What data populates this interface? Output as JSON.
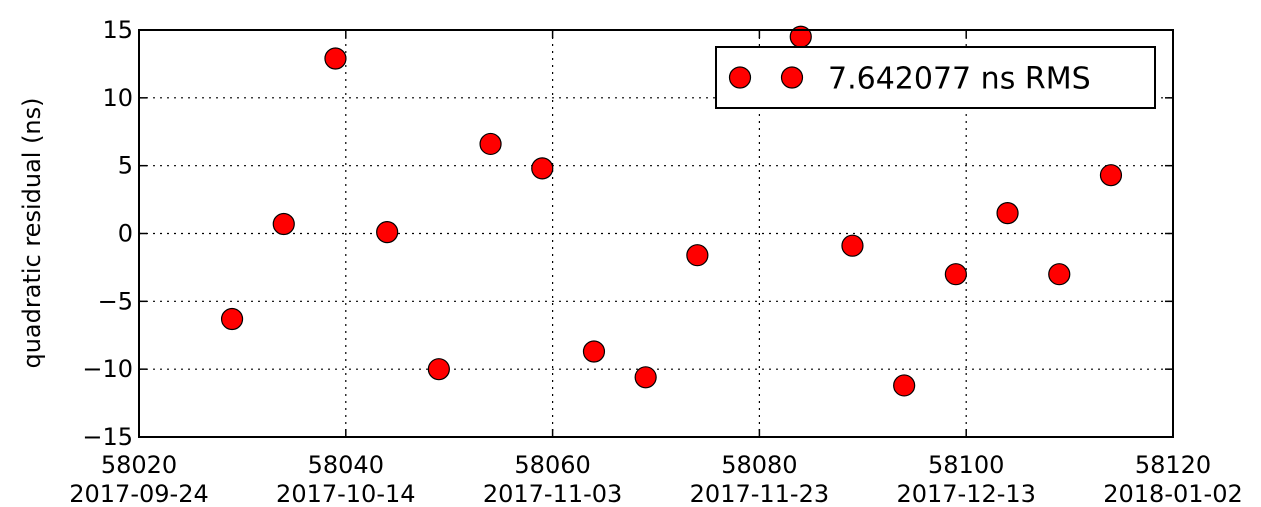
{
  "chart_data": {
    "type": "scatter",
    "title": "",
    "xlabel": "",
    "ylabel": "quadratic residual (ns)",
    "xlim": [
      58020,
      58120
    ],
    "ylim": [
      -15,
      15
    ],
    "xticks": [
      "58020",
      "58040",
      "58060",
      "58080",
      "58100",
      "58120"
    ],
    "xticks_secondary": [
      "2017-09-24",
      "2017-10-14",
      "2017-11-03",
      "2017-11-23",
      "2017-12-13",
      "2018-01-02"
    ],
    "yticks": [
      "15",
      "10",
      "5",
      "0",
      "−5",
      "−10",
      "−15"
    ],
    "grid": true,
    "legend_placement": "upper-right",
    "series": [
      {
        "name": "7.642077 ns RMS",
        "color": "#ff0000",
        "marker": "circle",
        "points": [
          {
            "x": 58029,
            "y": -6.3
          },
          {
            "x": 58034,
            "y": 0.7
          },
          {
            "x": 58039,
            "y": 12.9
          },
          {
            "x": 58044,
            "y": 0.1
          },
          {
            "x": 58049,
            "y": -10.0
          },
          {
            "x": 58054,
            "y": 6.6
          },
          {
            "x": 58059,
            "y": 4.8
          },
          {
            "x": 58064,
            "y": -8.7
          },
          {
            "x": 58069,
            "y": -10.6
          },
          {
            "x": 58074,
            "y": -1.6
          },
          {
            "x": 58084,
            "y": 14.5
          },
          {
            "x": 58089,
            "y": -0.9
          },
          {
            "x": 58094,
            "y": -11.2
          },
          {
            "x": 58099,
            "y": -3.0
          },
          {
            "x": 58104,
            "y": 1.5
          },
          {
            "x": 58109,
            "y": -3.0
          },
          {
            "x": 58114,
            "y": 4.3
          }
        ]
      }
    ]
  }
}
